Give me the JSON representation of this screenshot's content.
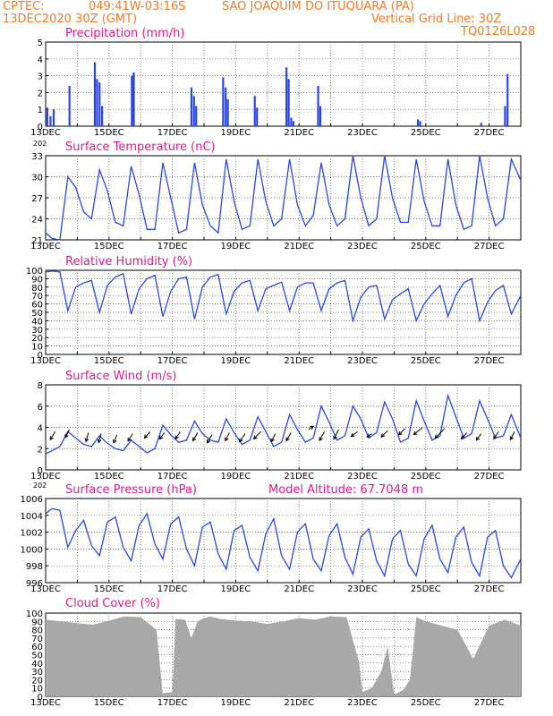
{
  "header": {
    "line1_left": "CPTEC:",
    "coords": "049:41W-03:16S",
    "station": "SAO JOAQUIM DO ITUQUARA (PA)",
    "datetime": "13DEC2020 30Z (GMT)",
    "grid_note": "Vertical Grid Line: 30Z",
    "code": "TQ0126L028"
  },
  "colors": {
    "header": "#f07a28",
    "title": "#e0198a",
    "series": "#2b46e0",
    "bar": "#2b46e0",
    "cloud": "#a8a8a8"
  },
  "x_labels": [
    "13DEC",
    "15DEC",
    "17DEC",
    "19DEC",
    "21DEC",
    "23DEC",
    "25DEC",
    "27DEC"
  ],
  "x_label_stub": "202",
  "chart_data": [
    {
      "type": "bar",
      "id": "precip",
      "title": "Precipitation (mm/h)",
      "ylim": [
        0,
        5
      ],
      "yticks": [
        0,
        1,
        2,
        3,
        4,
        5
      ],
      "x_days": [
        0,
        15
      ],
      "bars": [
        [
          0.05,
          1.1
        ],
        [
          0.15,
          0.6
        ],
        [
          0.25,
          1.0
        ],
        [
          0.75,
          2.4
        ],
        [
          1.55,
          3.8
        ],
        [
          1.62,
          2.8
        ],
        [
          1.7,
          2.6
        ],
        [
          1.78,
          1.2
        ],
        [
          2.72,
          3.0
        ],
        [
          2.78,
          3.2
        ],
        [
          4.6,
          2.3
        ],
        [
          4.68,
          1.8
        ],
        [
          4.75,
          1.2
        ],
        [
          5.6,
          2.9
        ],
        [
          5.68,
          2.3
        ],
        [
          5.75,
          1.6
        ],
        [
          6.6,
          1.8
        ],
        [
          6.67,
          1.1
        ],
        [
          7.6,
          3.5
        ],
        [
          7.67,
          2.8
        ],
        [
          7.75,
          0.5
        ],
        [
          7.82,
          0.3
        ],
        [
          8.6,
          2.4
        ],
        [
          8.67,
          1.2
        ],
        [
          11.75,
          0.4
        ],
        [
          11.82,
          0.3
        ],
        [
          13.75,
          0.2
        ],
        [
          14.5,
          1.2
        ],
        [
          14.58,
          3.1
        ]
      ]
    },
    {
      "type": "line",
      "id": "temp",
      "title": "Surface Temperature (nC)",
      "ylim": [
        21,
        33
      ],
      "yticks": [
        21,
        24,
        27,
        30,
        33
      ],
      "x_days": [
        0,
        15
      ],
      "x": [
        0,
        0.2,
        0.45,
        0.7,
        0.95,
        1.2,
        1.45,
        1.7,
        1.95,
        2.2,
        2.45,
        2.7,
        2.95,
        3.2,
        3.45,
        3.7,
        3.95,
        4.2,
        4.45,
        4.7,
        4.95,
        5.2,
        5.45,
        5.7,
        5.95,
        6.2,
        6.45,
        6.7,
        6.95,
        7.2,
        7.45,
        7.7,
        7.95,
        8.2,
        8.45,
        8.7,
        8.95,
        9.2,
        9.45,
        9.7,
        9.95,
        10.2,
        10.45,
        10.7,
        10.95,
        11.2,
        11.45,
        11.7,
        11.95,
        12.2,
        12.45,
        12.7,
        12.95,
        13.2,
        13.45,
        13.7,
        13.95,
        14.2,
        14.45,
        14.7,
        15
      ],
      "y": [
        22,
        21.2,
        21.0,
        30.0,
        28.5,
        25.0,
        24.0,
        31.0,
        28.0,
        23.5,
        23.0,
        31.5,
        27.5,
        22.5,
        22.5,
        32.0,
        27.0,
        22.0,
        22.5,
        32.0,
        26.0,
        23.0,
        22.0,
        32.5,
        26.5,
        22.5,
        23.0,
        32.5,
        26.5,
        23.0,
        24.0,
        32.5,
        26.0,
        23.0,
        24.5,
        32.0,
        26.0,
        23.0,
        24.0,
        33.0,
        27.0,
        23.0,
        24.0,
        33.0,
        27.0,
        23.5,
        23.5,
        32.5,
        26.5,
        23.0,
        23.0,
        32.5,
        26.0,
        22.5,
        23.0,
        33.0,
        27.0,
        23.0,
        24.0,
        32.5,
        29.5
      ]
    },
    {
      "type": "line",
      "id": "rh",
      "title": "Relative Humidity (%)",
      "ylim": [
        0,
        100
      ],
      "yticks": [
        0,
        10,
        20,
        30,
        40,
        50,
        60,
        70,
        80,
        90,
        100
      ],
      "x_days": [
        0,
        15
      ],
      "x": [
        0,
        0.2,
        0.45,
        0.7,
        0.95,
        1.2,
        1.45,
        1.7,
        1.95,
        2.2,
        2.45,
        2.7,
        2.95,
        3.2,
        3.45,
        3.7,
        3.95,
        4.2,
        4.45,
        4.7,
        4.95,
        5.2,
        5.45,
        5.7,
        5.95,
        6.2,
        6.45,
        6.7,
        6.95,
        7.2,
        7.45,
        7.7,
        7.95,
        8.2,
        8.45,
        8.7,
        8.95,
        9.2,
        9.45,
        9.7,
        9.95,
        10.2,
        10.45,
        10.7,
        10.95,
        11.2,
        11.45,
        11.7,
        11.95,
        12.2,
        12.45,
        12.7,
        12.95,
        13.2,
        13.45,
        13.7,
        13.95,
        14.2,
        14.45,
        14.7,
        15
      ],
      "y": [
        98,
        99,
        98,
        52,
        80,
        85,
        88,
        50,
        82,
        92,
        96,
        48,
        78,
        90,
        94,
        45,
        75,
        90,
        92,
        42,
        80,
        92,
        95,
        48,
        75,
        85,
        88,
        52,
        78,
        82,
        86,
        52,
        80,
        85,
        85,
        52,
        78,
        85,
        88,
        40,
        68,
        80,
        82,
        42,
        65,
        72,
        78,
        40,
        60,
        72,
        82,
        45,
        70,
        85,
        90,
        40,
        62,
        76,
        82,
        48,
        70
      ]
    },
    {
      "type": "line",
      "id": "wind",
      "title": "Surface Wind (m/s)",
      "ylim": [
        0,
        8
      ],
      "yticks": [
        0,
        2,
        4,
        6,
        8
      ],
      "x_days": [
        0,
        15
      ],
      "x": [
        0,
        0.2,
        0.45,
        0.7,
        0.95,
        1.2,
        1.45,
        1.7,
        1.95,
        2.2,
        2.45,
        2.7,
        2.95,
        3.2,
        3.45,
        3.7,
        3.95,
        4.2,
        4.45,
        4.7,
        4.95,
        5.2,
        5.45,
        5.7,
        5.95,
        6.2,
        6.45,
        6.7,
        6.95,
        7.2,
        7.45,
        7.7,
        7.95,
        8.2,
        8.45,
        8.7,
        8.95,
        9.2,
        9.45,
        9.7,
        9.95,
        10.2,
        10.45,
        10.7,
        10.95,
        11.2,
        11.45,
        11.7,
        11.95,
        12.2,
        12.45,
        12.7,
        12.95,
        13.2,
        13.45,
        13.7,
        13.95,
        14.2,
        14.45,
        14.7,
        15
      ],
      "y": [
        1.5,
        1.8,
        2.2,
        3.6,
        3.0,
        2.4,
        2.2,
        3.2,
        2.5,
        2.0,
        1.8,
        2.8,
        2.2,
        1.6,
        2.0,
        4.2,
        3.3,
        2.6,
        2.8,
        4.6,
        3.4,
        2.8,
        2.6,
        4.8,
        3.5,
        2.4,
        2.8,
        5.0,
        3.6,
        2.2,
        2.6,
        5.2,
        3.8,
        2.6,
        3.0,
        6.0,
        4.5,
        2.8,
        3.2,
        6.0,
        4.8,
        3.0,
        3.5,
        6.4,
        4.8,
        2.6,
        3.0,
        6.5,
        4.6,
        2.8,
        3.2,
        7.0,
        5.0,
        3.0,
        3.4,
        6.5,
        4.8,
        3.0,
        3.2,
        5.2,
        3.0
      ],
      "arrows": [
        [
          0.3,
          3.6,
          -0.6,
          -1.0
        ],
        [
          0.75,
          3.8,
          -0.5,
          -1.0
        ],
        [
          1.35,
          3.5,
          -0.3,
          -1.1
        ],
        [
          1.75,
          3.4,
          -0.3,
          -1.1
        ],
        [
          2.25,
          3.3,
          -0.4,
          -1.0
        ],
        [
          2.75,
          3.4,
          -0.6,
          -0.9
        ],
        [
          3.3,
          3.6,
          -0.7,
          -0.8
        ],
        [
          3.75,
          3.5,
          -0.6,
          -0.8
        ],
        [
          4.25,
          3.6,
          -0.6,
          -0.9
        ],
        [
          4.8,
          3.5,
          -0.6,
          -1.0
        ],
        [
          5.25,
          3.3,
          -0.6,
          -1.0
        ],
        [
          5.8,
          3.5,
          -0.5,
          -1.0
        ],
        [
          6.3,
          3.4,
          -0.7,
          -1.0
        ],
        [
          6.8,
          3.6,
          -0.9,
          -0.9
        ],
        [
          7.25,
          3.4,
          -0.5,
          -1.0
        ],
        [
          7.75,
          3.5,
          -0.6,
          -1.0
        ],
        [
          8.3,
          3.8,
          0.6,
          0.4
        ],
        [
          8.8,
          3.6,
          -0.6,
          -1.1
        ],
        [
          9.25,
          3.8,
          -0.6,
          -1.2
        ],
        [
          9.85,
          3.6,
          -0.8,
          -0.6
        ],
        [
          10.3,
          3.4,
          -0.6,
          -0.4
        ],
        [
          10.8,
          3.7,
          -0.8,
          -0.8
        ],
        [
          11.35,
          3.9,
          -0.8,
          -0.8
        ],
        [
          11.9,
          4.0,
          -1.1,
          -0.9
        ],
        [
          12.6,
          3.9,
          -1.2,
          -1.2
        ],
        [
          13.3,
          3.5,
          -0.7,
          -0.8
        ],
        [
          13.75,
          3.4,
          -0.6,
          -0.8
        ],
        [
          14.3,
          3.6,
          -0.6,
          -0.9
        ],
        [
          14.8,
          3.6,
          -0.5,
          -1.0
        ]
      ]
    },
    {
      "type": "line",
      "id": "pres",
      "title": "Surface Pressure (hPa)",
      "annotation": "Model Altitude: 67.7048 m",
      "ylim": [
        996,
        1006
      ],
      "yticks": [
        996,
        998,
        1000,
        1002,
        1004,
        1006
      ],
      "x_days": [
        0,
        15
      ],
      "x": [
        0,
        0.2,
        0.45,
        0.7,
        0.95,
        1.2,
        1.45,
        1.7,
        1.95,
        2.2,
        2.45,
        2.7,
        2.95,
        3.2,
        3.45,
        3.7,
        3.95,
        4.2,
        4.45,
        4.7,
        4.95,
        5.2,
        5.45,
        5.7,
        5.95,
        6.2,
        6.45,
        6.7,
        6.95,
        7.2,
        7.45,
        7.7,
        7.95,
        8.2,
        8.45,
        8.7,
        8.95,
        9.2,
        9.45,
        9.7,
        9.95,
        10.2,
        10.45,
        10.7,
        10.95,
        11.2,
        11.45,
        11.7,
        11.95,
        12.2,
        12.45,
        12.7,
        12.95,
        13.2,
        13.45,
        13.7,
        13.95,
        14.2,
        14.45,
        14.7,
        15
      ],
      "y": [
        1004.2,
        1004.8,
        1004.6,
        1000.2,
        1002.2,
        1003.4,
        1000.4,
        999.2,
        1003.2,
        1003.8,
        1000.2,
        998.6,
        1002.8,
        1004.2,
        1000.6,
        998.8,
        1003.0,
        1003.8,
        1000.0,
        998.0,
        1002.6,
        1003.2,
        999.4,
        997.6,
        1002.2,
        1002.8,
        999.0,
        997.4,
        1001.8,
        1003.6,
        999.2,
        997.6,
        1002.0,
        1003.0,
        998.8,
        997.4,
        1001.6,
        1003.0,
        999.0,
        997.0,
        1001.4,
        1002.4,
        998.6,
        996.8,
        1001.2,
        1002.2,
        998.2,
        996.8,
        1001.2,
        1002.8,
        998.8,
        997.2,
        1001.4,
        1002.6,
        998.4,
        996.8,
        1001.4,
        1002.2,
        998.0,
        996.6,
        998.8
      ]
    },
    {
      "type": "area",
      "id": "cloud",
      "title": "Cloud Cover (%)",
      "ylim": [
        0,
        100
      ],
      "yticks": [
        0,
        10,
        20,
        30,
        40,
        50,
        60,
        70,
        80,
        90,
        100
      ],
      "x_days": [
        0,
        15
      ],
      "x": [
        0,
        0.5,
        1,
        1.5,
        2,
        2.5,
        3,
        3.5,
        3.7,
        3.72,
        4.0,
        4.1,
        4.4,
        4.6,
        4.8,
        5.0,
        5.2,
        5.5,
        6.0,
        6.5,
        7.0,
        7.5,
        8.0,
        8.5,
        9.0,
        9.5,
        9.9,
        10.0,
        10.3,
        10.6,
        10.8,
        11.0,
        11.3,
        11.5,
        11.7,
        12.0,
        12.5,
        13.0,
        13.5,
        14.0,
        14.5,
        15
      ],
      "y": [
        92,
        90,
        88,
        86,
        91,
        96,
        95,
        80,
        2,
        4,
        5,
        93,
        92,
        70,
        90,
        94,
        96,
        93,
        91,
        90,
        87,
        90,
        94,
        92,
        96,
        95,
        40,
        5,
        10,
        30,
        60,
        2,
        8,
        20,
        95,
        90,
        85,
        80,
        45,
        85,
        92,
        85
      ]
    }
  ]
}
